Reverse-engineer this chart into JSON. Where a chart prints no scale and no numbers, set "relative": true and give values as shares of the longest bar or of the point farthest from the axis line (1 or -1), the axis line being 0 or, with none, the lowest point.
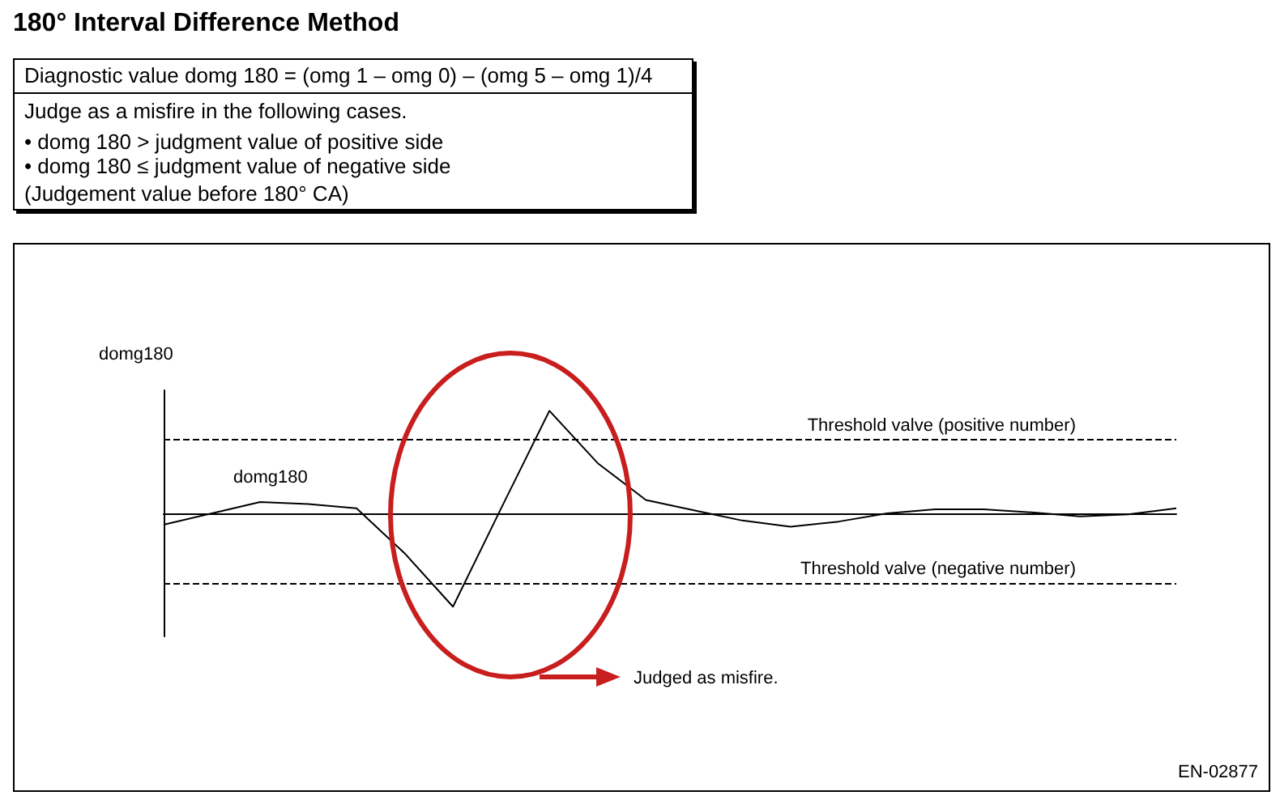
{
  "chart_data": {
    "type": "line",
    "title": "180° Interval Difference Method",
    "subtitle": "Diagnostic value   domg 180 = (omg 1 – omg 0) – (omg 5 – omg 1)/4",
    "ylabel": "domg180",
    "annotations": [
      "Judge as a misfire in the following cases.",
      "•  domg 180 > judgment value of positive side",
      "•  domg 180 ≤ judgment value of negative side",
      "(Judgement value before 180° CA)",
      "Judged as misfire.",
      "EN-02877"
    ],
    "relative": true,
    "categories": [
      null,
      null,
      null,
      null,
      null,
      null,
      null,
      null,
      null,
      null,
      null,
      null,
      null,
      null,
      null,
      null,
      null,
      null,
      null,
      null,
      null,
      null
    ],
    "series": [
      {
        "name": "domg180",
        "color": "#000000",
        "values": [
          -0.11,
          0,
          0.11,
          0.09,
          0.05,
          -0.39,
          -0.91,
          0.05,
          1,
          0.49,
          0.13,
          0.03,
          -0.07,
          -0.13,
          -0.08,
          0,
          0.04,
          0.04,
          0.01,
          -0.03,
          -0.01,
          0.05
        ]
      }
    ],
    "ref_lines": [
      {
        "axis": "y",
        "value": 0.72,
        "label": "Threshold valve (positive number)",
        "color": "#000000",
        "line_style": "dashed"
      },
      {
        "axis": "y",
        "value": -0.68,
        "label": "Threshold valve (negative number)",
        "color": "#000000",
        "line_style": "dashed"
      }
    ],
    "grid": false,
    "legend": false,
    "marker": "none",
    "line_style": "solid"
  }
}
